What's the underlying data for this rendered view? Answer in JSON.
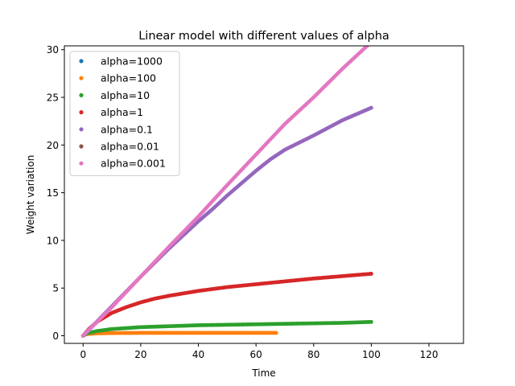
{
  "chart_data": {
    "type": "scatter",
    "title": "Linear model with different values of alpha",
    "xlabel": "Time",
    "ylabel": "Weight variation",
    "xlim": [
      -6.5,
      132
    ],
    "ylim": [
      -0.8,
      30.4
    ],
    "xticks": [
      0,
      20,
      40,
      60,
      80,
      100,
      120
    ],
    "yticks": [
      0,
      5,
      10,
      15,
      20,
      25,
      30
    ],
    "grid": false,
    "legend_position": "top-left",
    "series": [
      {
        "name": "alpha=1000",
        "color": "#1f77b4",
        "x_max": 0,
        "points": [
          [
            0,
            0
          ]
        ]
      },
      {
        "name": "alpha=100",
        "color": "#ff7f0e",
        "x_max": 67,
        "points": [
          [
            0,
            0
          ],
          [
            1,
            0.15
          ],
          [
            2,
            0.2
          ],
          [
            5,
            0.25
          ],
          [
            10,
            0.28
          ],
          [
            20,
            0.3
          ],
          [
            30,
            0.3
          ],
          [
            40,
            0.3
          ],
          [
            50,
            0.3
          ],
          [
            60,
            0.3
          ],
          [
            67,
            0.3
          ]
        ]
      },
      {
        "name": "alpha=10",
        "color": "#2ca02c",
        "x_max": 100,
        "points": [
          [
            0,
            0
          ],
          [
            1,
            0.2
          ],
          [
            2,
            0.3
          ],
          [
            5,
            0.5
          ],
          [
            10,
            0.7
          ],
          [
            20,
            0.9
          ],
          [
            30,
            1.0
          ],
          [
            40,
            1.1
          ],
          [
            50,
            1.15
          ],
          [
            60,
            1.2
          ],
          [
            70,
            1.25
          ],
          [
            80,
            1.3
          ],
          [
            90,
            1.35
          ],
          [
            100,
            1.45
          ]
        ]
      },
      {
        "name": "alpha=1",
        "color": "#d62728",
        "x_max": 100,
        "points": [
          [
            0,
            0
          ],
          [
            2,
            0.7
          ],
          [
            5,
            1.5
          ],
          [
            10,
            2.4
          ],
          [
            15,
            3.0
          ],
          [
            20,
            3.5
          ],
          [
            25,
            3.9
          ],
          [
            30,
            4.2
          ],
          [
            40,
            4.7
          ],
          [
            50,
            5.1
          ],
          [
            60,
            5.4
          ],
          [
            70,
            5.7
          ],
          [
            80,
            6.0
          ],
          [
            90,
            6.25
          ],
          [
            100,
            6.5
          ]
        ]
      },
      {
        "name": "alpha=0.1",
        "color": "#9467bd",
        "x_max": 100,
        "points": [
          [
            0,
            0
          ],
          [
            10,
            3.1
          ],
          [
            20,
            6.2
          ],
          [
            30,
            9.2
          ],
          [
            40,
            12.0
          ],
          [
            45,
            13.3
          ],
          [
            50,
            14.7
          ],
          [
            55,
            16.0
          ],
          [
            60,
            17.3
          ],
          [
            65,
            18.5
          ],
          [
            70,
            19.5
          ],
          [
            80,
            21.0
          ],
          [
            90,
            22.6
          ],
          [
            100,
            23.9
          ]
        ]
      },
      {
        "name": "alpha=0.01",
        "color": "#8c564b",
        "x_max": 0,
        "points": [
          [
            0,
            0
          ]
        ]
      },
      {
        "name": "alpha=0.001",
        "color": "#e377c2",
        "x_max": 100,
        "points": [
          [
            0,
            0
          ],
          [
            10,
            3.0
          ],
          [
            20,
            6.2
          ],
          [
            30,
            9.4
          ],
          [
            40,
            12.5
          ],
          [
            50,
            15.8
          ],
          [
            60,
            19.0
          ],
          [
            70,
            22.2
          ],
          [
            80,
            25.0
          ],
          [
            90,
            28.0
          ],
          [
            100,
            30.8
          ]
        ]
      }
    ]
  }
}
